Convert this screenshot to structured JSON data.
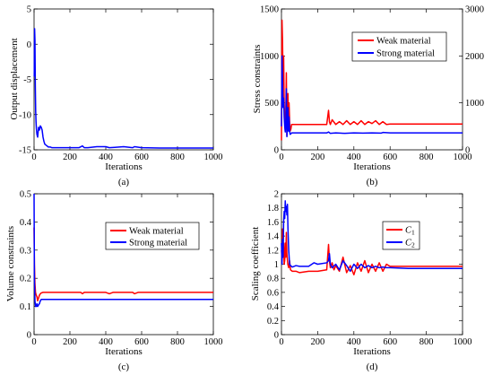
{
  "chart_data": [
    {
      "type": "line",
      "panel": "(a)",
      "xlabel": "Iterations",
      "ylabel": "Output displacement",
      "xlim": [
        0,
        1000
      ],
      "ylim": [
        -15,
        5
      ],
      "xticks": [
        "0",
        "200",
        "400",
        "600",
        "800",
        "1000"
      ],
      "yticks": [
        "-15",
        "-10",
        "-5",
        "0",
        "5"
      ],
      "xtick_values": [
        0,
        200,
        400,
        600,
        800,
        1000
      ],
      "ytick_values": [
        -15,
        -10,
        -5,
        0,
        5
      ],
      "series": [
        {
          "color": "#0000ff",
          "x": [
            1,
            3,
            5,
            7,
            9,
            11,
            13,
            16,
            20,
            25,
            30,
            35,
            40,
            45,
            50,
            55,
            60,
            70,
            80,
            90,
            100,
            120,
            150,
            200,
            250,
            270,
            280,
            300,
            350,
            400,
            420,
            450,
            500,
            550,
            560,
            600,
            700,
            800,
            900,
            1000
          ],
          "y": [
            -4.6,
            2.2,
            0.5,
            -6.0,
            -9.5,
            -11.0,
            -12.0,
            -12.8,
            -13.2,
            -11.8,
            -12.2,
            -11.6,
            -11.8,
            -12.2,
            -13.2,
            -13.8,
            -14.2,
            -14.4,
            -14.6,
            -14.6,
            -14.7,
            -14.7,
            -14.7,
            -14.7,
            -14.7,
            -14.45,
            -14.7,
            -14.7,
            -14.55,
            -14.55,
            -14.7,
            -14.65,
            -14.55,
            -14.7,
            -14.55,
            -14.7,
            -14.75,
            -14.75,
            -14.75,
            -14.75
          ]
        }
      ]
    },
    {
      "type": "line",
      "panel": "(b)",
      "xlabel": "Iterations",
      "ylabel": "Stress constraints",
      "xlim": [
        0,
        1000
      ],
      "ylim": [
        0,
        1500
      ],
      "y2lim": [
        0,
        3000
      ],
      "xticks": [
        "0",
        "200",
        "400",
        "600",
        "800",
        "1000"
      ],
      "yticks": [
        "0",
        "500",
        "1000",
        "1500"
      ],
      "y2ticks": [
        "0",
        "1000",
        "2000",
        "3000"
      ],
      "xtick_values": [
        0,
        200,
        400,
        600,
        800,
        1000
      ],
      "ytick_values": [
        0,
        500,
        1000,
        1500
      ],
      "y2tick_values": [
        0,
        1000,
        2000,
        3000
      ],
      "legend": {
        "position": "top-right",
        "entries": [
          "Weak material",
          "Strong material"
        ]
      },
      "series": [
        {
          "name": "Weak material",
          "color": "#ff0000",
          "axis": "left",
          "x": [
            0,
            3,
            6,
            9,
            12,
            15,
            18,
            21,
            24,
            27,
            30,
            33,
            36,
            39,
            42,
            45,
            48,
            52,
            56,
            60,
            70,
            80,
            100,
            150,
            200,
            250,
            260,
            265,
            270,
            280,
            300,
            320,
            340,
            360,
            380,
            400,
            420,
            440,
            460,
            480,
            500,
            520,
            540,
            560,
            580,
            600,
            700,
            800,
            900,
            1000
          ],
          "y": [
            100,
            1380,
            1150,
            700,
            1000,
            500,
            300,
            200,
            400,
            820,
            150,
            300,
            600,
            230,
            500,
            300,
            200,
            220,
            270,
            270,
            270,
            270,
            270,
            270,
            270,
            270,
            420,
            300,
            270,
            320,
            270,
            300,
            270,
            310,
            270,
            300,
            270,
            310,
            270,
            300,
            280,
            310,
            270,
            300,
            270,
            275,
            275,
            275,
            275,
            275
          ]
        },
        {
          "name": "Strong material",
          "color": "#0000ff",
          "axis": "right",
          "x": [
            0,
            3,
            6,
            9,
            12,
            15,
            18,
            21,
            24,
            27,
            30,
            33,
            36,
            39,
            42,
            45,
            48,
            52,
            56,
            60,
            70,
            80,
            100,
            150,
            200,
            250,
            260,
            270,
            300,
            350,
            400,
            450,
            500,
            550,
            560,
            600,
            700,
            800,
            900,
            1000
          ],
          "y": [
            500,
            2000,
            1400,
            900,
            1100,
            700,
            500,
            380,
            600,
            1300,
            280,
            480,
            900,
            400,
            700,
            400,
            330,
            340,
            360,
            360,
            360,
            360,
            360,
            360,
            360,
            360,
            380,
            350,
            360,
            350,
            360,
            355,
            360,
            355,
            370,
            360,
            360,
            360,
            360,
            360
          ]
        }
      ]
    },
    {
      "type": "line",
      "panel": "(c)",
      "xlabel": "Iterations",
      "ylabel": "Volume constraints",
      "xlim": [
        0,
        1000
      ],
      "ylim": [
        0,
        0.5
      ],
      "xticks": [
        "0",
        "200",
        "400",
        "600",
        "800",
        "1000"
      ],
      "yticks": [
        "0",
        "0.1",
        "0.2",
        "0.3",
        "0.4",
        "0.5"
      ],
      "xtick_values": [
        0,
        200,
        400,
        600,
        800,
        1000
      ],
      "ytick_values": [
        0,
        0.1,
        0.2,
        0.3,
        0.4,
        0.5
      ],
      "legend": {
        "position": "top-right",
        "entries": [
          "Weak material",
          "Strong material"
        ]
      },
      "series": [
        {
          "name": "Weak material",
          "color": "#ff0000",
          "x": [
            0,
            2,
            5,
            8,
            12,
            16,
            20,
            25,
            30,
            35,
            40,
            50,
            60,
            80,
            100,
            200,
            260,
            270,
            280,
            300,
            400,
            420,
            440,
            500,
            550,
            560,
            580,
            600,
            700,
            800,
            900,
            1000
          ],
          "y": [
            0.38,
            0.25,
            0.18,
            0.15,
            0.14,
            0.135,
            0.12,
            0.13,
            0.14,
            0.145,
            0.148,
            0.15,
            0.15,
            0.15,
            0.15,
            0.15,
            0.15,
            0.145,
            0.15,
            0.15,
            0.15,
            0.145,
            0.15,
            0.15,
            0.15,
            0.145,
            0.15,
            0.15,
            0.15,
            0.15,
            0.15,
            0.15
          ]
        },
        {
          "name": "Strong material",
          "color": "#0000ff",
          "x": [
            0,
            2,
            5,
            8,
            12,
            16,
            20,
            25,
            30,
            35,
            40,
            50,
            60,
            80,
            100,
            200,
            300,
            400,
            500,
            600,
            700,
            800,
            900,
            1000
          ],
          "y": [
            0.5,
            0.2,
            0.12,
            0.1,
            0.1,
            0.11,
            0.1,
            0.105,
            0.11,
            0.12,
            0.125,
            0.125,
            0.125,
            0.125,
            0.125,
            0.125,
            0.125,
            0.125,
            0.125,
            0.125,
            0.125,
            0.125,
            0.125,
            0.125
          ]
        }
      ]
    },
    {
      "type": "line",
      "panel": "(d)",
      "xlabel": "Iterations",
      "ylabel": "Scaling coefficient",
      "xlim": [
        0,
        1000
      ],
      "ylim": [
        0,
        2
      ],
      "xticks": [
        "0",
        "200",
        "400",
        "600",
        "800",
        "1000"
      ],
      "yticks": [
        "0",
        "0.2",
        "0.4",
        "0.6",
        "0.8",
        "1",
        "1.2",
        "1.4",
        "1.6",
        "1.8",
        "2"
      ],
      "xtick_values": [
        0,
        200,
        400,
        600,
        800,
        1000
      ],
      "ytick_values": [
        0,
        0.2,
        0.4,
        0.6,
        0.8,
        1,
        1.2,
        1.4,
        1.6,
        1.8,
        2
      ],
      "legend": {
        "position": "top-right",
        "entries": [
          "C1",
          "C2"
        ]
      },
      "series": [
        {
          "name": "C1",
          "color": "#ff0000",
          "x": [
            0,
            3,
            6,
            9,
            12,
            15,
            18,
            21,
            24,
            27,
            30,
            35,
            40,
            45,
            50,
            60,
            80,
            100,
            150,
            200,
            250,
            260,
            265,
            270,
            280,
            290,
            300,
            320,
            340,
            360,
            380,
            400,
            420,
            440,
            460,
            480,
            500,
            520,
            540,
            560,
            580,
            600,
            700,
            800,
            900,
            1000
          ],
          "y": [
            1.2,
            1.05,
            1.5,
            1.1,
            1.3,
            1.0,
            1.05,
            1.3,
            1.1,
            1.45,
            1.15,
            1.0,
            0.95,
            1.05,
            0.92,
            0.9,
            0.9,
            0.88,
            0.9,
            0.9,
            0.92,
            1.28,
            1.05,
            0.95,
            1.02,
            0.92,
            0.98,
            0.9,
            1.1,
            0.88,
            0.98,
            0.85,
            1.02,
            0.9,
            1.05,
            0.88,
            1.0,
            0.9,
            1.02,
            0.9,
            1.0,
            0.97,
            0.97,
            0.97,
            0.97,
            0.97
          ]
        },
        {
          "name": "C2",
          "color": "#0000ff",
          "x": [
            0,
            3,
            6,
            9,
            12,
            15,
            18,
            21,
            24,
            27,
            30,
            33,
            36,
            40,
            45,
            50,
            60,
            80,
            100,
            150,
            180,
            200,
            250,
            260,
            265,
            270,
            280,
            300,
            320,
            340,
            360,
            380,
            400,
            420,
            440,
            460,
            480,
            500,
            520,
            540,
            560,
            580,
            600,
            700,
            800,
            900,
            1000
          ],
          "y": [
            1.3,
            1.0,
            1.35,
            1.1,
            1.6,
            1.75,
            1.65,
            1.9,
            1.75,
            1.82,
            1.7,
            1.85,
            1.5,
            1.2,
            1.0,
            0.98,
            0.96,
            0.98,
            0.97,
            0.97,
            1.02,
            1.0,
            1.02,
            1.05,
            1.15,
            1.0,
            0.95,
            1.0,
            0.92,
            1.05,
            0.98,
            0.9,
            1.0,
            0.94,
            1.0,
            0.95,
            0.98,
            0.95,
            0.97,
            0.95,
            0.96,
            0.95,
            0.95,
            0.94,
            0.94,
            0.94,
            0.94
          ]
        }
      ]
    }
  ]
}
